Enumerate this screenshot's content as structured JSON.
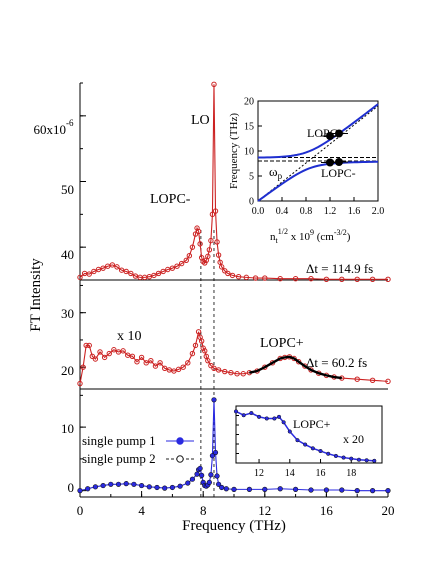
{
  "chart_data": {
    "type": "line",
    "xlabel": "Frequency (THz)",
    "ylabel": "FT Intensity",
    "xlim": [
      0,
      20
    ],
    "xticks": [
      "0",
      "4",
      "8",
      "12",
      "16",
      "20"
    ],
    "x_minor_step": 2,
    "top_panel": {
      "ylim": [
        35,
        65
      ],
      "ytick_labels": [
        "40",
        "50",
        "60x10"
      ],
      "ytick_exponent": "-6",
      "ytick_values": [
        40,
        50,
        60
      ],
      "color": "#cc2222",
      "label_lo": "LO",
      "label_lopc_minus": "LOPC-",
      "dt_label": "Δt = 114.9 fs",
      "series": {
        "name": "",
        "x": [
          0.0,
          0.3,
          0.6,
          0.9,
          1.2,
          1.5,
          1.8,
          2.1,
          2.4,
          2.7,
          3.0,
          3.3,
          3.6,
          3.9,
          4.2,
          4.5,
          4.8,
          5.1,
          5.4,
          5.7,
          6.0,
          6.3,
          6.6,
          6.9,
          7.1,
          7.3,
          7.5,
          7.6,
          7.7,
          7.8,
          7.9,
          8.0,
          8.1,
          8.2,
          8.3,
          8.4,
          8.5,
          8.6,
          8.7,
          8.8,
          8.9,
          9.0,
          9.1,
          9.2,
          9.4,
          9.6,
          9.9,
          10.3,
          10.8,
          11.4,
          12,
          13,
          14,
          15,
          16,
          17,
          18,
          19,
          20
        ],
        "y": [
          35.4,
          36.0,
          35.9,
          36.3,
          36.6,
          36.8,
          37.1,
          37.3,
          37.0,
          36.5,
          36.3,
          36.0,
          35.6,
          35.4,
          35.4,
          35.5,
          35.7,
          36.0,
          36.3,
          36.6,
          36.8,
          37.1,
          37.5,
          38.0,
          38.7,
          40.0,
          42.0,
          42.9,
          42.4,
          40.5,
          38.4,
          37.8,
          37.6,
          38.0,
          38.6,
          39.6,
          41.0,
          45.0,
          64.8,
          45.5,
          40.8,
          38.8,
          37.7,
          37.0,
          36.4,
          36.0,
          35.7,
          35.5,
          35.4,
          35.3,
          35.3,
          35.2,
          35.2,
          35.2,
          35.1,
          35.1,
          35.1,
          35.1,
          35.1
        ]
      }
    },
    "middle_panel": {
      "ylim": [
        16,
        36
      ],
      "ytick_labels": [
        "20",
        "30"
      ],
      "ytick_values": [
        20,
        30
      ],
      "color": "#cc2222",
      "fit_color": "#000000",
      "label_x10": "x 10",
      "label_lopc_plus": "LOPC+",
      "dt_label": "Δt = 60.2 fs",
      "series": {
        "name": "",
        "x": [
          0.0,
          0.2,
          0.4,
          0.6,
          0.8,
          1.0,
          1.3,
          1.6,
          1.9,
          2.2,
          2.5,
          2.8,
          3.1,
          3.4,
          3.7,
          4.0,
          4.3,
          4.6,
          4.9,
          5.2,
          5.5,
          5.8,
          6.1,
          6.4,
          6.7,
          7.0,
          7.3,
          7.5,
          7.7,
          7.8,
          7.9,
          8.0,
          8.1,
          8.2,
          8.3,
          8.5,
          8.7,
          9.0,
          9.4,
          9.8,
          10.2,
          10.6,
          11.0,
          11.5,
          12.0,
          12.5,
          13.0,
          13.3,
          13.6,
          13.9,
          14.2,
          14.6,
          15.0,
          15.5,
          16.0,
          16.5,
          17.0,
          18.0,
          19.0,
          20.0
        ],
        "y": [
          17.0,
          20.0,
          24.0,
          24.0,
          22.0,
          21.5,
          22.8,
          21.8,
          22.5,
          23.2,
          22.8,
          23.0,
          22.2,
          22.0,
          21.0,
          21.8,
          20.8,
          21.2,
          20.2,
          20.8,
          19.8,
          19.5,
          19.3,
          19.6,
          20.0,
          20.8,
          22.5,
          24.0,
          26.5,
          25.5,
          24.8,
          23.5,
          23.0,
          22.0,
          21.2,
          20.3,
          19.8,
          19.5,
          19.2,
          19.0,
          18.8,
          18.8,
          19.0,
          19.3,
          20.0,
          20.8,
          21.6,
          21.8,
          21.9,
          21.6,
          21.0,
          20.2,
          19.5,
          18.9,
          18.5,
          18.2,
          18.0,
          17.8,
          17.6,
          17.4
        ]
      }
    },
    "bottom_panel": {
      "ylim": [
        -1,
        16
      ],
      "ytick_labels": [
        "0",
        "10"
      ],
      "ytick_values": [
        0,
        10
      ],
      "legend": [
        "single pump 1",
        "single pump 2"
      ],
      "colors": {
        "pump1": "#2a2ae0",
        "pump2": "#222222"
      },
      "series": {
        "name": "single pump 1",
        "x": [
          0.0,
          0.5,
          1.0,
          1.5,
          2.0,
          2.5,
          3.0,
          3.5,
          4.0,
          4.5,
          5.0,
          5.5,
          6.0,
          6.5,
          7.0,
          7.3,
          7.6,
          7.7,
          7.8,
          7.9,
          8.0,
          8.1,
          8.2,
          8.3,
          8.4,
          8.5,
          8.6,
          8.7,
          8.8,
          8.9,
          9.0,
          9.2,
          9.5,
          10.0,
          11.0,
          12.0,
          13.0,
          14.0,
          15.0,
          16.0,
          17.0,
          18.0,
          19.0,
          20.0
        ],
        "y": [
          0.0,
          0.3,
          0.6,
          0.8,
          1.0,
          1.0,
          1.1,
          1.0,
          0.8,
          0.6,
          0.5,
          0.4,
          0.5,
          0.7,
          1.2,
          1.8,
          2.6,
          3.3,
          3.5,
          2.4,
          1.3,
          0.8,
          0.7,
          0.9,
          1.3,
          2.5,
          5.5,
          14.3,
          6.0,
          2.3,
          1.0,
          0.5,
          0.3,
          0.2,
          0.2,
          0.2,
          0.3,
          0.2,
          0.1,
          0.1,
          0.1,
          0.0,
          0.0,
          0.0
        ]
      }
    },
    "inset_top": {
      "xlabel": "n",
      "xlabel_sub": "t",
      "xlabel_sup": "1/2",
      "xlabel_mid": " x 10",
      "xlabel_sup2": "9",
      "xlabel_unit": " (cm",
      "xlabel_unit_sup": "-3/2",
      "xlabel_end": ")",
      "ylabel": "Frequency (THz)",
      "xlim": [
        0.0,
        2.0
      ],
      "ylim": [
        0,
        20
      ],
      "xticks": [
        "0.0",
        "0.4",
        "0.8",
        "1.2",
        "1.6",
        "2.0"
      ],
      "yticks": [
        "0",
        "5",
        "10",
        "15",
        "20"
      ],
      "label_lopc_plus": "LOPC+",
      "label_lopc_minus": "LOPC-",
      "label_omega": "ω",
      "label_omega_sub": "p",
      "points": [
        {
          "x": 1.2,
          "y": 13.0,
          "xerr": 0.15
        },
        {
          "x": 1.35,
          "y": 13.5,
          "xerr": 0.15
        },
        {
          "x": 1.2,
          "y": 7.7,
          "xerr": 0.15
        },
        {
          "x": 1.35,
          "y": 7.8,
          "xerr": 0.15
        }
      ]
    },
    "inset_bottom": {
      "xlim": [
        10.5,
        20
      ],
      "ylim": [
        0,
        1.05
      ],
      "xticks": [
        "12",
        "14",
        "16",
        "18"
      ],
      "label_lopc_plus": "LOPC+",
      "label_x20": "x 20",
      "series": {
        "name": "",
        "x": [
          10.5,
          11.0,
          11.5,
          12.0,
          12.5,
          13.0,
          13.3,
          13.6,
          14.0,
          14.5,
          15.0,
          15.5,
          16.0,
          16.5,
          17.0,
          17.5,
          18.0,
          18.5,
          19.0,
          19.5
        ],
        "y": [
          0.95,
          0.88,
          0.92,
          0.85,
          0.82,
          0.82,
          0.85,
          0.75,
          0.58,
          0.42,
          0.34,
          0.27,
          0.22,
          0.17,
          0.13,
          0.1,
          0.08,
          0.06,
          0.05,
          0.04
        ]
      }
    }
  }
}
